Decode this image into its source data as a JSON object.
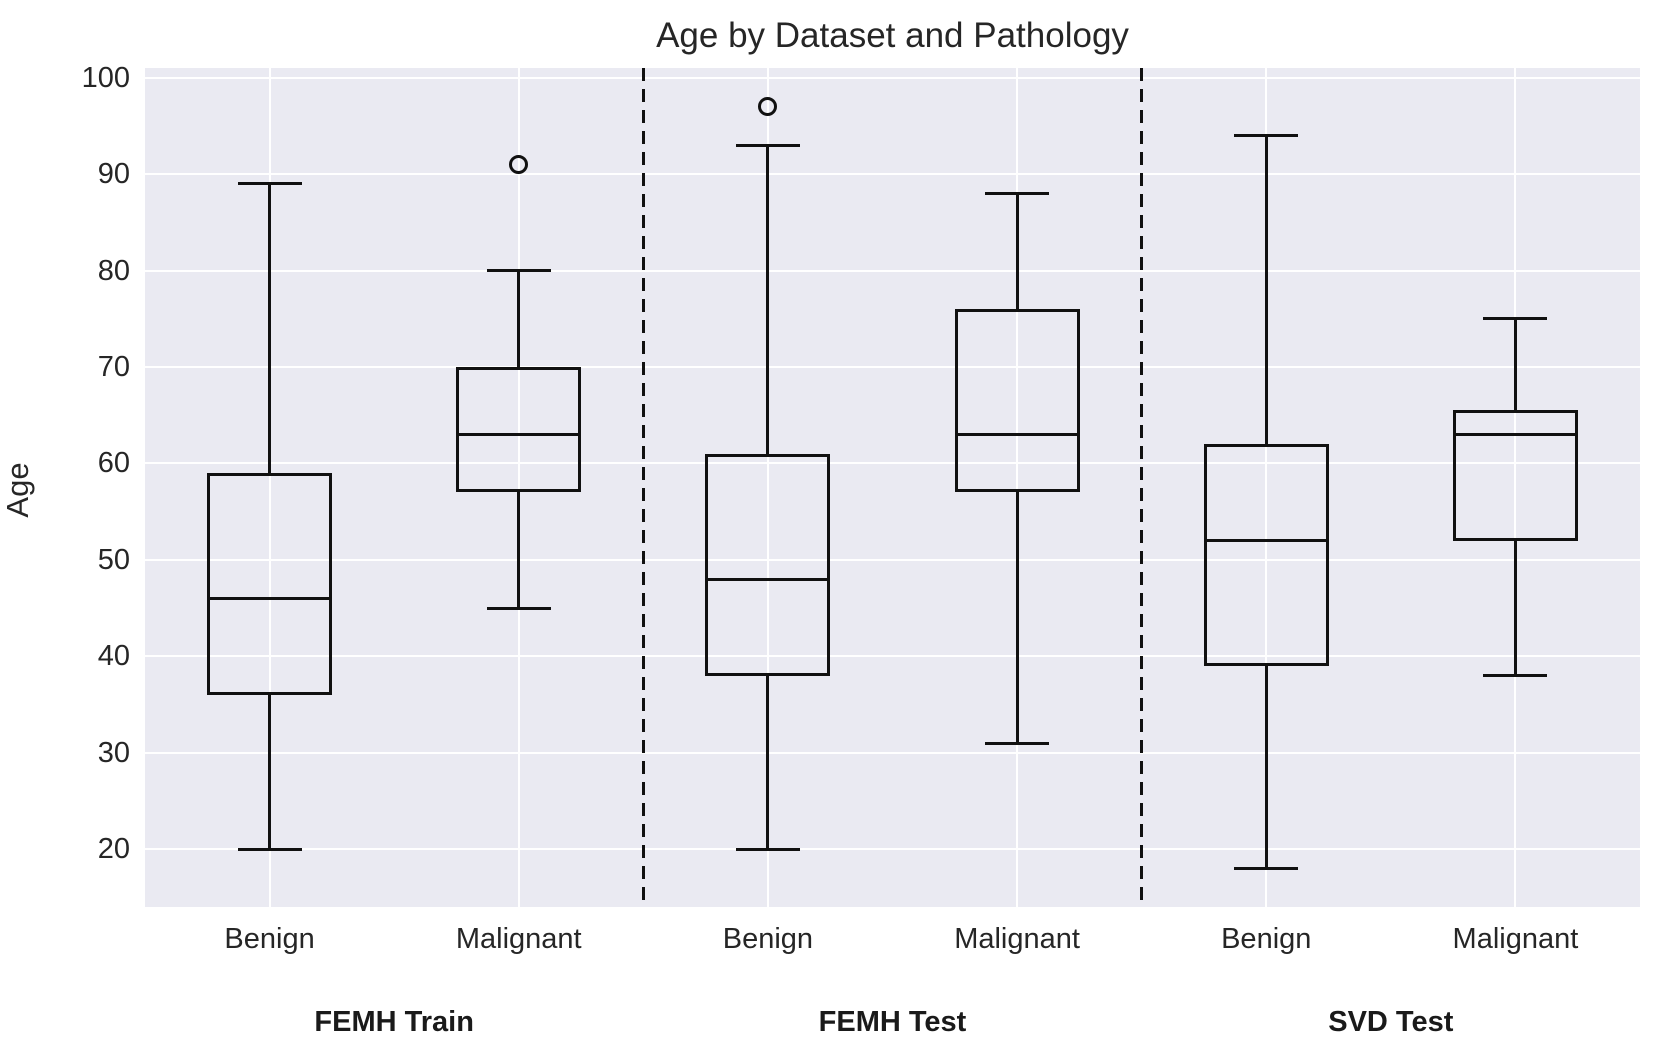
{
  "title": "Age by Dataset and Pathology",
  "chart_data": {
    "type": "boxplot",
    "title": "Age by Dataset and Pathology",
    "xlabel": "",
    "ylabel": "Age",
    "ylim": [
      14,
      101
    ],
    "yticks": [
      20,
      30,
      40,
      50,
      60,
      70,
      80,
      90,
      100
    ],
    "grid": true,
    "legend": "none",
    "colors": {
      "plot_background": "#eaeaf2",
      "grid_color": "#ffffff",
      "box_line_color": "#111111",
      "text_color": "#262626",
      "figure_background": "#ffffff"
    },
    "categories": [
      "Benign",
      "Malignant",
      "Benign",
      "Malignant",
      "Benign",
      "Malignant"
    ],
    "groups": [
      {
        "label": "FEMH Train",
        "span_slots": [
          0,
          1
        ]
      },
      {
        "label": "FEMH Test",
        "span_slots": [
          2,
          3
        ]
      },
      {
        "label": "SVD Test",
        "span_slots": [
          4,
          5
        ]
      }
    ],
    "separator_slot_boundaries": [
      2,
      4
    ],
    "boxes": [
      {
        "group": "FEMH Train",
        "pathology": "Benign",
        "whisker_low": 20,
        "q1": 36,
        "median": 46,
        "q3": 59,
        "whisker_high": 89,
        "outliers": []
      },
      {
        "group": "FEMH Train",
        "pathology": "Malignant",
        "whisker_low": 45,
        "q1": 57,
        "median": 63,
        "q3": 70,
        "whisker_high": 80,
        "outliers": [
          91
        ]
      },
      {
        "group": "FEMH Test",
        "pathology": "Benign",
        "whisker_low": 20,
        "q1": 38,
        "median": 48,
        "q3": 61,
        "whisker_high": 93,
        "outliers": [
          97
        ]
      },
      {
        "group": "FEMH Test",
        "pathology": "Malignant",
        "whisker_low": 31,
        "q1": 57,
        "median": 63,
        "q3": 76,
        "whisker_high": 88,
        "outliers": []
      },
      {
        "group": "SVD Test",
        "pathology": "Benign",
        "whisker_low": 18,
        "q1": 39,
        "median": 52,
        "q3": 62,
        "whisker_high": 94,
        "outliers": []
      },
      {
        "group": "SVD Test",
        "pathology": "Malignant",
        "whisker_low": 38,
        "q1": 52,
        "median": 63,
        "q3": 65.5,
        "whisker_high": 75,
        "outliers": []
      }
    ]
  }
}
